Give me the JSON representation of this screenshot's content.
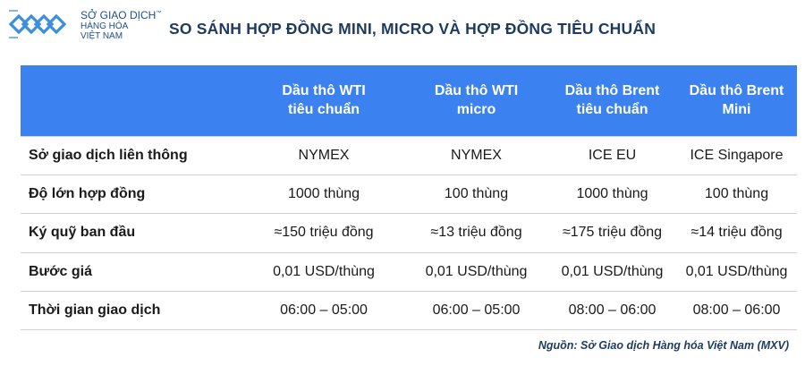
{
  "header": {
    "logo_text_line1": "SỞ GIAO DỊCH",
    "logo_text_line2": "HÀNG HÓA",
    "logo_text_line3": "VIỆT NAM",
    "logo_tm": "™",
    "title": "SO SÁNH HỢP ĐỒNG MINI, MICRO VÀ HỢP ĐỒNG TIÊU CHUẨN"
  },
  "table": {
    "columns": [
      {
        "line1": "",
        "line2": ""
      },
      {
        "line1": "Dầu thô WTI",
        "line2": "tiêu chuẩn"
      },
      {
        "line1": "Dầu thô WTI",
        "line2": "micro"
      },
      {
        "line1": "Dầu thô Brent",
        "line2": "tiêu chuẩn"
      },
      {
        "line1": "Dầu thô Brent",
        "line2": "Mini"
      }
    ],
    "rows": [
      {
        "label": "Sở giao dịch liên thông",
        "cells": [
          "NYMEX",
          "NYMEX",
          "ICE EU",
          "ICE Singapore"
        ]
      },
      {
        "label": "Độ lớn hợp đồng",
        "cells": [
          "1000 thùng",
          "100 thùng",
          "1000 thùng",
          "100 thùng"
        ]
      },
      {
        "label": "Ký quỹ ban đầu",
        "cells": [
          "≈150 triệu đồng",
          "≈13 triệu đồng",
          "≈175 triệu đồng",
          "≈14 triệu đồng"
        ]
      },
      {
        "label": "Bước giá",
        "cells": [
          "0,01 USD/thùng",
          "0,01 USD/thùng",
          "0,01 USD/thùng",
          "0,01 USD/thùng"
        ]
      },
      {
        "label": "Thời gian giao dịch",
        "cells": [
          "06:00 – 05:00",
          "06:00 – 05:00",
          "08:00 – 06:00",
          "08:00 – 06:00"
        ]
      }
    ]
  },
  "source": "Nguồn: Sở Giao dịch Hàng hóa Việt Nam (MXV)",
  "colors": {
    "header_bg": "#3b82f0",
    "title": "#1f3a5f",
    "logo": "#1f4e8c"
  },
  "icons": {
    "logo": "mxv-logo-icon"
  }
}
